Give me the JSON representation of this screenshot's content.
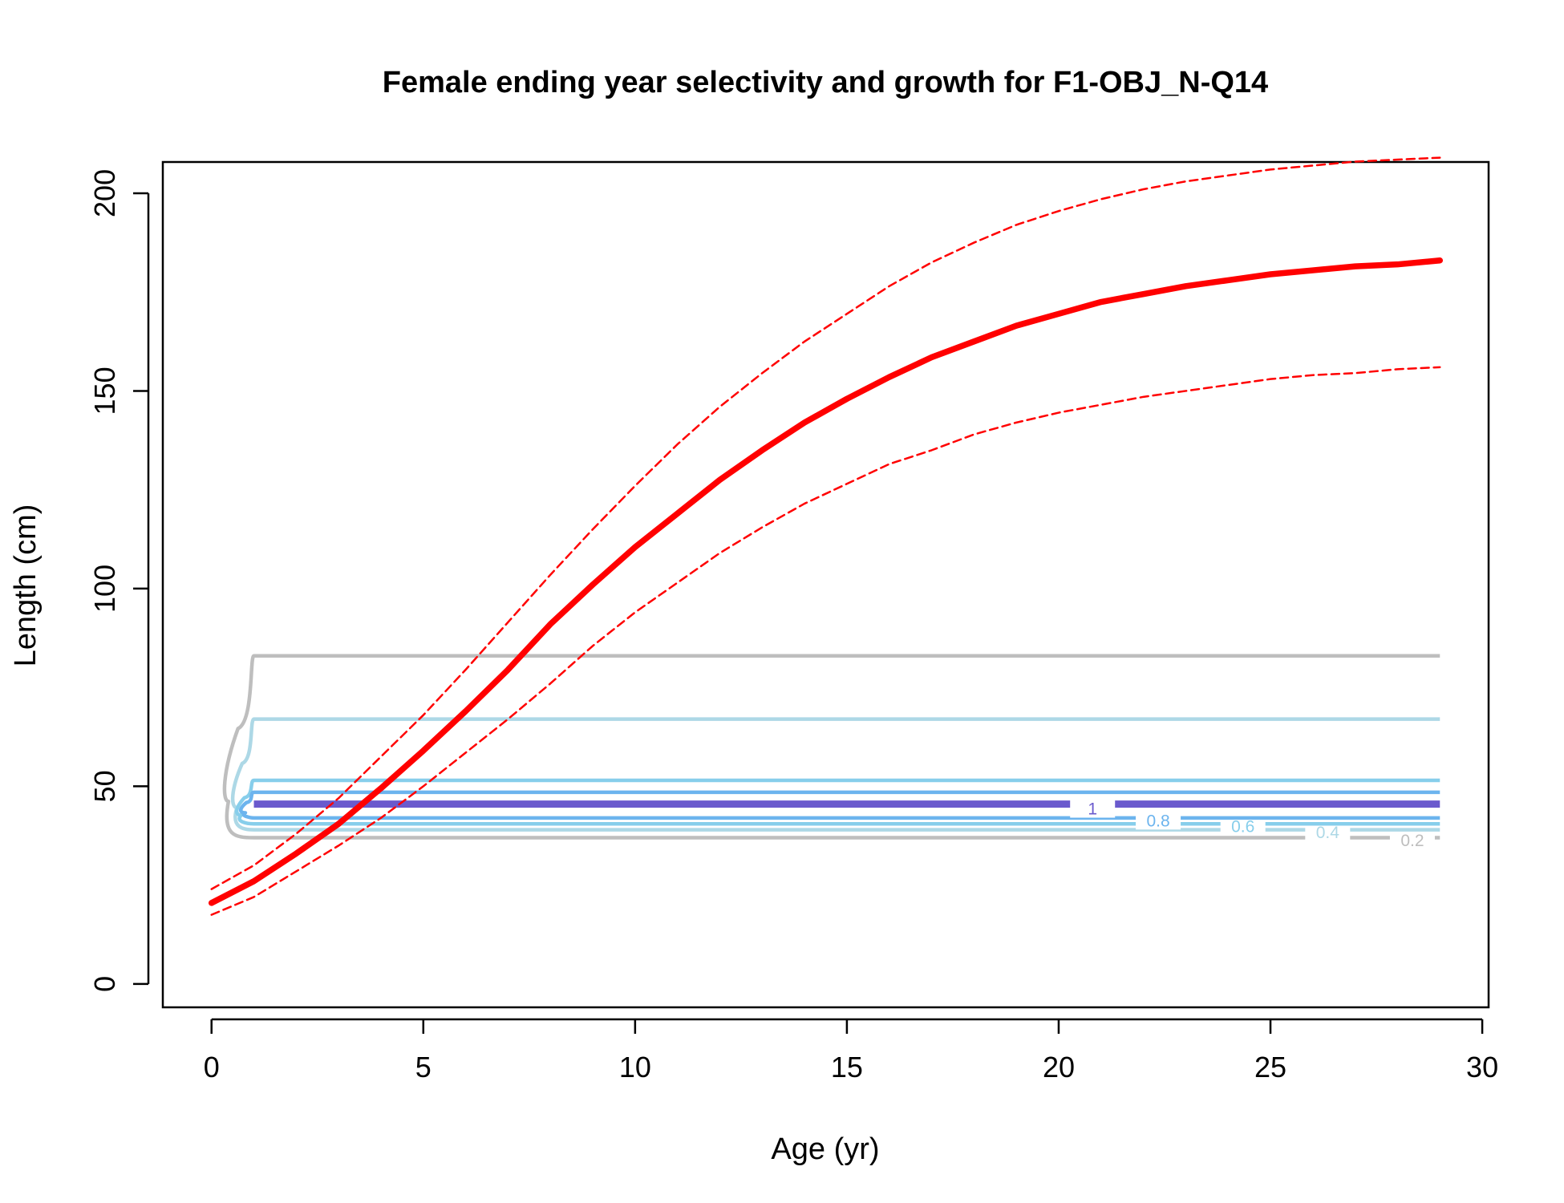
{
  "chart_data": {
    "type": "line",
    "title": "Female ending year selectivity and growth for F1-OBJ_N-Q14",
    "xlabel": "Age (yr)",
    "ylabel": "Length (cm)",
    "xlim": [
      -1.15,
      30.15
    ],
    "ylim": [
      -5.9,
      207.9
    ],
    "xticks": [
      0,
      5,
      10,
      15,
      20,
      25,
      30
    ],
    "yticks": [
      0,
      50,
      100,
      150,
      200
    ],
    "grid": false,
    "series": [
      {
        "role": "mean-length-at-age",
        "color": "#ff0000",
        "style": "solid",
        "x": [
          0,
          1,
          2,
          3,
          4,
          5,
          6,
          7,
          8,
          9,
          10,
          11,
          12,
          13,
          14,
          15,
          16,
          17,
          18,
          19,
          20,
          21,
          22,
          23,
          24,
          25,
          26,
          27,
          28,
          29
        ],
        "y": [
          20.5,
          26,
          33,
          40.5,
          49.5,
          59,
          69,
          79.5,
          91,
          101,
          110.5,
          119,
          127.5,
          135,
          142,
          148,
          153.5,
          158.5,
          162.5,
          166.5,
          169.5,
          172.5,
          174.5,
          176.5,
          178,
          179.5,
          180.5,
          181.5,
          182,
          183
        ]
      },
      {
        "role": "upper-interval",
        "color": "#ff0000",
        "style": "dashed",
        "x": [
          0,
          1,
          2,
          3,
          4,
          5,
          6,
          7,
          8,
          9,
          10,
          11,
          12,
          13,
          14,
          15,
          16,
          17,
          18,
          19,
          20,
          21,
          22,
          23,
          24,
          25,
          26,
          27,
          28,
          29
        ],
        "y": [
          24,
          30,
          38,
          47,
          57.5,
          68,
          79.5,
          91.5,
          103.5,
          115,
          126,
          136.5,
          146,
          154.5,
          162.5,
          169.5,
          176.5,
          182.5,
          187.5,
          192,
          195.5,
          198.5,
          201,
          203,
          204.5,
          206,
          207,
          208,
          208.5,
          209
        ]
      },
      {
        "role": "lower-interval",
        "color": "#ff0000",
        "style": "dashed",
        "x": [
          0,
          1,
          2,
          3,
          4,
          5,
          6,
          7,
          8,
          9,
          10,
          11,
          12,
          13,
          14,
          15,
          16,
          17,
          18,
          19,
          20,
          21,
          22,
          23,
          24,
          25,
          26,
          27,
          28,
          29
        ],
        "y": [
          17.5,
          22,
          28.5,
          35,
          42,
          50,
          58.5,
          67,
          76,
          85.5,
          94,
          101.5,
          109,
          115.5,
          121.5,
          126.5,
          131.5,
          135,
          139,
          142,
          144.5,
          146.5,
          148.5,
          150,
          151.5,
          153,
          154,
          154.5,
          155.5,
          156
        ]
      }
    ],
    "selectivity_contours": [
      {
        "level": "0.2",
        "color": "#bebebe",
        "y_bottom": 37.0,
        "y_top": 83.0,
        "x_left": 0.25,
        "label_x": 28.35,
        "label_y": 36.5
      },
      {
        "level": "0.4",
        "color": "#add8e6",
        "y_bottom": 39.0,
        "y_top": 67.0,
        "x_left": 0.45,
        "label_x": 26.35,
        "label_y": 38.5
      },
      {
        "level": "0.6",
        "color": "#87ceeb",
        "y_bottom": 40.5,
        "y_top": 51.5,
        "x_left": 0.55,
        "label_x": 24.35,
        "label_y": 40.0
      },
      {
        "level": "0.8",
        "color": "#6cb4ee",
        "y_bottom": 42.0,
        "y_top": 48.5,
        "x_left": 0.65,
        "label_x": 22.35,
        "label_y": 41.5
      },
      {
        "level": "1",
        "color": "#6a5acd",
        "y_bottom": 45.5,
        "y_top": 45.5,
        "x_left": 1.0,
        "label_x": 20.8,
        "label_y": 44.5
      }
    ]
  }
}
